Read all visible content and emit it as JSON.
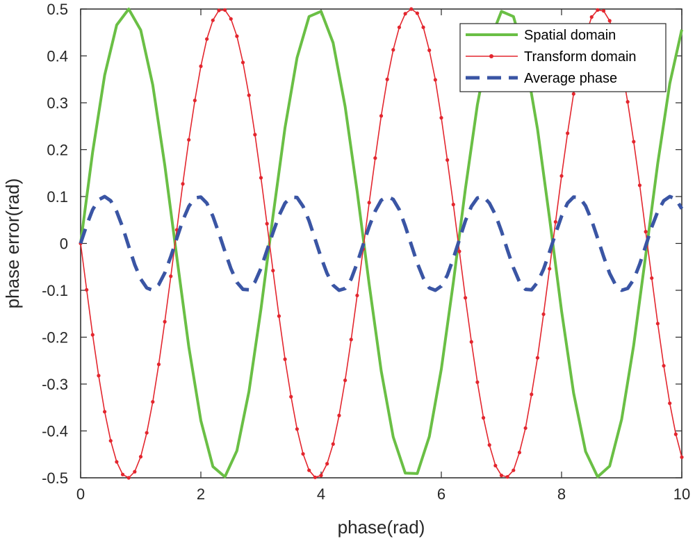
{
  "chart_data": {
    "type": "line",
    "title": "",
    "xlabel": "phase(rad)",
    "ylabel": "phase error(rad)",
    "xlim": [
      0,
      10
    ],
    "ylim": [
      -0.5,
      0.5
    ],
    "xticks": [
      0,
      2,
      4,
      6,
      8,
      10
    ],
    "xtick_labels": [
      "0",
      "2",
      "4",
      "6",
      "8",
      "10"
    ],
    "yticks": [
      -0.5,
      -0.4,
      -0.3,
      -0.2,
      -0.1,
      0,
      0.1,
      0.2,
      0.3,
      0.4,
      0.5
    ],
    "ytick_labels": [
      "-0.5",
      "-0.4",
      "-0.3",
      "-0.2",
      "-0.1",
      "0",
      "0.1",
      "0.2",
      "0.3",
      "0.4",
      "0.5"
    ],
    "grid": false,
    "legend_position": "top-right",
    "series": [
      {
        "name": "Spatial domain",
        "color": "#6abf45",
        "style": "solid",
        "x": [
          0,
          0.2,
          0.4,
          0.6,
          0.8,
          1.0,
          1.2,
          1.4,
          1.6,
          1.8,
          2.0,
          2.2,
          2.4,
          2.6,
          2.8,
          3.0,
          3.2,
          3.4,
          3.6,
          3.8,
          4.0,
          4.2,
          4.4,
          4.6,
          4.8,
          5.0,
          5.2,
          5.4,
          5.6,
          5.8,
          6.0,
          6.2,
          6.4,
          6.6,
          6.8,
          7.0,
          7.2,
          7.4,
          7.6,
          7.8,
          8.0,
          8.2,
          8.4,
          8.6,
          8.8,
          9.0,
          9.2,
          9.4,
          9.6,
          9.8,
          10.0
        ],
        "y": [
          0,
          0.195,
          0.359,
          0.466,
          0.5,
          0.455,
          0.338,
          0.167,
          -0.029,
          -0.221,
          -0.378,
          -0.476,
          -0.498,
          -0.442,
          -0.316,
          -0.14,
          0.058,
          0.247,
          0.396,
          0.484,
          0.495,
          0.428,
          0.292,
          0.111,
          -0.087,
          -0.272,
          -0.413,
          -0.49,
          -0.491,
          -0.412,
          -0.268,
          -0.083,
          0.116,
          0.296,
          0.43,
          0.495,
          0.484,
          0.394,
          0.244,
          0.054,
          -0.144,
          -0.319,
          -0.444,
          -0.498,
          -0.475,
          -0.375,
          -0.217,
          -0.025,
          0.171,
          0.341,
          0.456
        ]
      },
      {
        "name": "Transform domain",
        "color": "#e3262e",
        "style": "solid-with-dot-markers",
        "x": [
          0,
          0.1,
          0.2,
          0.3,
          0.4,
          0.5,
          0.6,
          0.7,
          0.8,
          0.9,
          1.0,
          1.1,
          1.2,
          1.3,
          1.4,
          1.5,
          1.6,
          1.7,
          1.8,
          1.9,
          2.0,
          2.1,
          2.2,
          2.3,
          2.4,
          2.5,
          2.6,
          2.7,
          2.8,
          2.9,
          3.0,
          3.1,
          3.2,
          3.3,
          3.4,
          3.5,
          3.6,
          3.7,
          3.8,
          3.9,
          4.0,
          4.1,
          4.2,
          4.3,
          4.4,
          4.5,
          4.6,
          4.7,
          4.8,
          4.9,
          5.0,
          5.1,
          5.2,
          5.3,
          5.4,
          5.5,
          5.6,
          5.7,
          5.8,
          5.9,
          6.0,
          6.1,
          6.2,
          6.3,
          6.4,
          6.5,
          6.6,
          6.7,
          6.8,
          6.9,
          7.0,
          7.1,
          7.2,
          7.3,
          7.4,
          7.5,
          7.6,
          7.7,
          7.8,
          7.9,
          8.0,
          8.1,
          8.2,
          8.3,
          8.4,
          8.5,
          8.6,
          8.7,
          8.8,
          8.9,
          9.0,
          9.1,
          9.2,
          9.3,
          9.4,
          9.5,
          9.6,
          9.7,
          9.8,
          9.9,
          10.0
        ],
        "y": [
          0,
          -0.099,
          -0.195,
          -0.282,
          -0.359,
          -0.421,
          -0.466,
          -0.493,
          -0.5,
          -0.487,
          -0.455,
          -0.404,
          -0.338,
          -0.258,
          -0.167,
          -0.07,
          0.029,
          0.127,
          0.221,
          0.305,
          0.378,
          0.436,
          0.476,
          0.497,
          0.498,
          0.479,
          0.442,
          0.386,
          0.316,
          0.232,
          0.14,
          0.042,
          -0.058,
          -0.155,
          -0.247,
          -0.327,
          -0.396,
          -0.449,
          -0.484,
          -0.499,
          -0.495,
          -0.47,
          -0.428,
          -0.367,
          -0.292,
          -0.205,
          -0.111,
          -0.012,
          0.087,
          0.182,
          0.272,
          0.35,
          0.413,
          0.461,
          0.49,
          0.5,
          0.491,
          0.461,
          0.412,
          0.349,
          0.268,
          0.178,
          0.083,
          -0.017,
          -0.116,
          -0.21,
          -0.296,
          -0.372,
          -0.43,
          -0.474,
          -0.495,
          -0.498,
          -0.484,
          -0.446,
          -0.394,
          -0.322,
          -0.244,
          -0.151,
          -0.054,
          0.046,
          0.144,
          0.235,
          0.319,
          0.389,
          0.444,
          0.483,
          0.498,
          0.496,
          0.475,
          0.432,
          0.375,
          0.302,
          0.217,
          0.124,
          0.025,
          -0.074,
          -0.171,
          -0.261,
          -0.341,
          -0.407,
          -0.456
        ]
      },
      {
        "name": "Average phase",
        "color": "#3a55a4",
        "style": "dashed",
        "x": [
          0,
          0.1,
          0.2,
          0.3,
          0.4,
          0.5,
          0.6,
          0.7,
          0.8,
          0.9,
          1.0,
          1.1,
          1.2,
          1.3,
          1.4,
          1.5,
          1.6,
          1.7,
          1.8,
          1.9,
          2.0,
          2.1,
          2.2,
          2.3,
          2.4,
          2.5,
          2.6,
          2.7,
          2.8,
          2.9,
          3.0,
          3.1,
          3.2,
          3.3,
          3.4,
          3.5,
          3.6,
          3.7,
          3.8,
          3.9,
          4.0,
          4.1,
          4.2,
          4.3,
          4.4,
          4.5,
          4.6,
          4.7,
          4.8,
          4.9,
          5.0,
          5.1,
          5.2,
          5.3,
          5.4,
          5.5,
          5.6,
          5.7,
          5.8,
          5.9,
          6.0,
          6.1,
          6.2,
          6.3,
          6.4,
          6.5,
          6.6,
          6.7,
          6.8,
          6.9,
          7.0,
          7.1,
          7.2,
          7.3,
          7.4,
          7.5,
          7.6,
          7.7,
          7.8,
          7.9,
          8.0,
          8.1,
          8.2,
          8.3,
          8.4,
          8.5,
          8.6,
          8.7,
          8.8,
          8.9,
          9.0,
          9.1,
          9.2,
          9.3,
          9.4,
          9.5,
          9.6,
          9.7,
          9.8,
          9.9,
          10.0
        ],
        "y": [
          0,
          0.039,
          0.072,
          0.093,
          0.1,
          0.091,
          0.068,
          0.034,
          -0.006,
          -0.045,
          -0.076,
          -0.095,
          -0.1,
          -0.088,
          -0.063,
          -0.028,
          0.011,
          0.049,
          0.079,
          0.097,
          0.099,
          0.086,
          0.058,
          0.022,
          -0.017,
          -0.054,
          -0.083,
          -0.098,
          -0.099,
          -0.082,
          -0.053,
          -0.015,
          0.023,
          0.059,
          0.086,
          0.099,
          0.098,
          0.079,
          0.048,
          0.009,
          -0.03,
          -0.064,
          -0.089,
          -0.1,
          -0.096,
          -0.076,
          -0.042,
          -0.003,
          0.036,
          0.069,
          0.092,
          0.1,
          0.094,
          0.072,
          0.037,
          -0.003,
          -0.042,
          -0.074,
          -0.095,
          -0.1,
          -0.091,
          -0.068,
          -0.032,
          0.008,
          0.048,
          0.079,
          0.097,
          0.1,
          0.086,
          0.061,
          0.026,
          -0.014,
          -0.052,
          -0.082,
          -0.098,
          -0.099,
          -0.083,
          -0.055,
          -0.018,
          0.021,
          0.058,
          0.086,
          0.099,
          0.098,
          0.08,
          0.049,
          0.011,
          -0.028,
          -0.064,
          -0.089,
          -0.1,
          -0.096,
          -0.077,
          -0.044,
          -0.005,
          0.035,
          0.068,
          0.091,
          0.1,
          0.095,
          0.074
        ]
      }
    ]
  }
}
